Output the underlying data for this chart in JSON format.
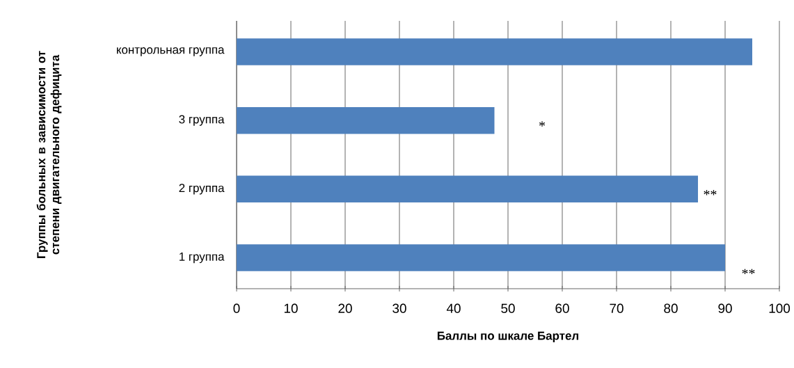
{
  "chart_data": {
    "type": "bar",
    "orientation": "horizontal",
    "xlabel": "Баллы по шкале Бартел",
    "ylabel": "Группы больных в зависимости от  степени двигательного дефицита",
    "categories": [
      "контрольная группа",
      "3 группа",
      "2 группа",
      "1 группа"
    ],
    "values": [
      95,
      47.5,
      85,
      90
    ],
    "color": "#4f81bd",
    "xlim": [
      0,
      100
    ],
    "xticks": [
      0,
      10,
      20,
      30,
      40,
      50,
      60,
      70,
      80,
      90,
      100
    ],
    "grid": "x",
    "annotations": [
      "*",
      "**",
      "**"
    ]
  }
}
